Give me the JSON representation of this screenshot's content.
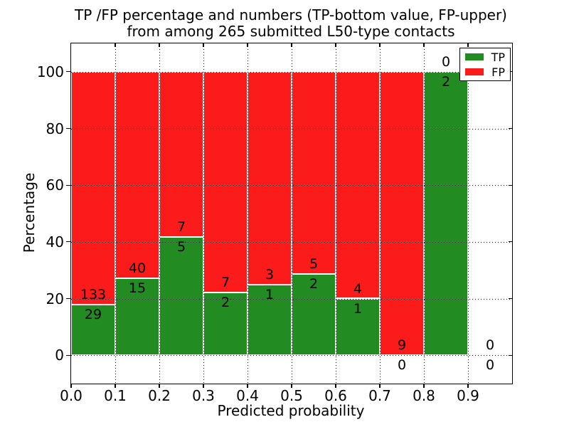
{
  "title_lines": {
    "line1": "TP /FP percentage and numbers (TP-bottom value, FP-upper)",
    "line2": "from among 265 submitted L50-type contacts"
  },
  "chart_data": {
    "type": "bar",
    "subtype": "stacked-percentage-histogram",
    "title": "TP /FP percentage and numbers (TP-bottom value, FP-upper) from among 265 submitted L50-type contacts",
    "xlabel": "Predicted probability",
    "ylabel": "Percentage",
    "xlim": [
      0.0,
      1.0
    ],
    "ylim": [
      -10,
      110
    ],
    "x_ticks": [
      "0.0",
      "0.1",
      "0.2",
      "0.3",
      "0.4",
      "0.5",
      "0.6",
      "0.7",
      "0.8",
      "0.9"
    ],
    "y_ticks": [
      "0",
      "20",
      "40",
      "60",
      "80",
      "100"
    ],
    "grid": "dotted-on-top-of-bars",
    "bin_edges": [
      0.0,
      0.1,
      0.2,
      0.3,
      0.4,
      0.5,
      0.6,
      0.7,
      0.8,
      0.9,
      1.0
    ],
    "categories": [
      "0.0-0.1",
      "0.1-0.2",
      "0.2-0.3",
      "0.3-0.4",
      "0.4-0.5",
      "0.5-0.6",
      "0.6-0.7",
      "0.7-0.8",
      "0.8-0.9",
      "0.9-1.0"
    ],
    "series": [
      {
        "name": "TP",
        "color": "#228b22",
        "values": [
          29,
          15,
          5,
          2,
          1,
          2,
          1,
          0,
          2,
          0
        ]
      },
      {
        "name": "FP",
        "color": "#fb1b1b",
        "values": [
          133,
          40,
          7,
          7,
          3,
          5,
          4,
          9,
          0,
          0
        ]
      }
    ],
    "tp_percent_heights": [
      17.9,
      27.3,
      41.7,
      22.2,
      25.0,
      28.6,
      20.0,
      0.0,
      100.0,
      null
    ],
    "bar_edge_color": "#ffffff",
    "legend": {
      "position": "upper right",
      "entries": [
        "TP",
        "FP"
      ]
    },
    "total_contacts": 265
  }
}
